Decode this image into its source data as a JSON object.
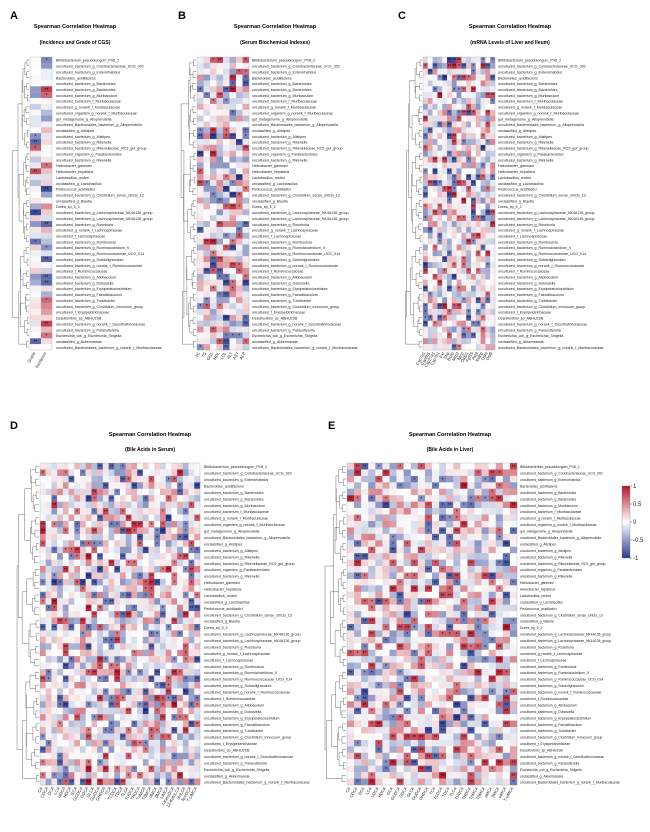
{
  "figure": {
    "panels": [
      {
        "id": "A",
        "letter": "A",
        "title": "Spearman Correlation Heatmap",
        "subtitle": "(Incidence and Grade of CGS)"
      },
      {
        "id": "B",
        "letter": "B",
        "title": "Spearman Correlation Heatmap",
        "subtitle": "(Serum Biochemical Indexes)"
      },
      {
        "id": "C",
        "letter": "C",
        "title": "Spearman Correlation Heatmap",
        "subtitle": "(mRNA Levels of Liver and Ileum)"
      },
      {
        "id": "D",
        "letter": "D",
        "title": "Spearman Correlation Heatmap",
        "subtitle": "(Bile Acids in Serum)"
      },
      {
        "id": "E",
        "letter": "E",
        "title": "Spearman Correlation Heatmap",
        "subtitle": "(Bile Acids in Liver)"
      }
    ],
    "colorbar": {
      "ticks": [
        "1",
        "0.5",
        "0",
        "-0.5",
        "-1"
      ],
      "high_color": "#b2182b",
      "mid_color": "#ffffff",
      "low_color": "#2b3b8f"
    }
  },
  "chart_data": [
    {
      "type": "heatmap",
      "panel": "A",
      "title": "Spearman Correlation Heatmap",
      "subtitle": "(Incidence and Grade of CGS)",
      "columns": [
        "Grade",
        "Incidence"
      ],
      "rows": [
        "Bifidobacterium_pseudolongum_PV8_2",
        "uncultured_bacterium_g_Coriobacteriaceae_UCG_002",
        "uncultured_bacterium_g_Enterorhabdus",
        "Bacteroides_acidifaciens",
        "uncultured_bacterium_g_Bacteroides",
        "uncultured_bacterium_g_Bacteroides",
        "uncultured_bacterium_g_Muribaculum",
        "uncultured_bacterium_f_Muribaculaceae",
        "uncultured_g_norank_f_Muribaculaceae",
        "uncultured_organism_g_norank_f_Muribaculaceae",
        "gut_metagenome_g_Alloprevotella",
        "uncultured_Bacteroidales_bacterium_g_Alloprevotella",
        "unclassified_g_Alistipes",
        "uncultured_bacterium_g_Alistipes",
        "uncultured_bacterium_g_Rikenella",
        "uncultured_bacterium_g_Rikenellaceae_RC9_gut_group",
        "uncultured_organism_g_Parabacteroides",
        "uncultured_bacterium_g_Rikenella",
        "Helicobacter_ganmani",
        "Helicobacter_hepaticus",
        "Lactobacillus_reuteri",
        "unclassified_g_Lactobacillus",
        "Pediococcus_acidilactici",
        "uncultured_bacterium_g_Clostridium_sensu_stricto_13",
        "unclassified_g_Blautia",
        "Dorea_sp_5_2",
        "uncultured_bacterium_g_Lachnospiraceae_NK4A136_group",
        "uncultured_bacterium_g_Lachnospiraceae_NK4A136_group",
        "uncultured_bacterium_g_Roseburia",
        "uncultured_g_norank_f_Lachnospiraceae",
        "uncultured_f_Lachnospiraceae",
        "uncultured_bacterium_g_Romboutsia",
        "uncultured_bacterium_g_Ruminiclostridium_9",
        "uncultured_bacterium_g_Ruminococcaceae_UCG_014",
        "uncultured_bacterium_g_Subdoligranulum",
        "uncultured_bacterium_g_norank_f_Ruminococcaceae",
        "uncultured_f_Ruminococcaceae",
        "uncultured_bacterium_g_Allobaculum",
        "uncultured_bacterium_g_Dubosiella",
        "uncultured_bacterium_g_Erysipelatoclostridium",
        "uncultured_bacterium_g_Faecalibaculum",
        "uncultured_bacterium_g_Turicibacter",
        "uncultured_bacterium_g_Clostridium_innocuum_group",
        "uncultured_f_Erysipelotrichaceae",
        "Desulfovibrio_sp_ABHU2SB",
        "uncultured_bacterium_g_norank_f_Desulfovibrionaceae",
        "uncultured_bacterium_g_Parasutterella",
        "Escherichia_coli_g_Escherichia_Shigella",
        "unclassified_g_Akkermansia",
        "uncultured_Bacteroidales_bacterium_g_norank_f_Muribaculaceae"
      ]
    },
    {
      "type": "heatmap",
      "panel": "B",
      "title": "Spearman Correlation Heatmap",
      "subtitle": "(Serum Biochemical Indexes)",
      "columns": [
        "TC",
        "TG",
        "GGL",
        "HDL",
        "LDL",
        "ALT",
        "AST",
        "ALP"
      ],
      "rows_same_as": "A"
    },
    {
      "type": "heatmap",
      "panel": "C",
      "title": "Spearman Correlation Heatmap",
      "subtitle": "(mRNA Levels of Liver and Ileum)",
      "columns": [
        "Cyp7a1",
        "Cyp8b1",
        "Cyp27a1",
        "Cyp7b1",
        "Fxr",
        "Shp",
        "Bsep",
        "Mrp2",
        "Ntcp",
        "Oatp1",
        "Fgf15",
        "Asbt",
        "Ibabp",
        "Ostα",
        "Ostβ"
      ],
      "rows_same_as": "A"
    },
    {
      "type": "heatmap",
      "panel": "D",
      "title": "Spearman Correlation Heatmap",
      "subtitle": "(Bile Acids in Serum)",
      "columns": [
        "CA",
        "CDCA",
        "DCA",
        "LCA",
        "UDCA",
        "HDCA",
        "GCA",
        "GCDCA",
        "GDCA",
        "GLCA",
        "GUDCA",
        "GHDCA",
        "TCA",
        "TCDCA",
        "TDCA",
        "TLCA",
        "TUDCA",
        "THDCA",
        "TαMCA",
        "TβMCA",
        "αMCA",
        "βMCA",
        "ωMCA",
        "7-KetoDCA",
        "12-KetoLCA",
        "isoLCA",
        "NorDCA",
        "T-ωMCA"
      ],
      "rows_same_as": "A"
    },
    {
      "type": "heatmap",
      "panel": "E",
      "title": "Spearman Correlation Heatmap",
      "subtitle": "(Bile Acids in Liver)",
      "columns": [
        "CA",
        "CDCA",
        "DCA",
        "LCA",
        "UDCA",
        "HDCA",
        "GCA",
        "GCDCA",
        "GDCA",
        "GLCA",
        "GUDCA",
        "GHDCA",
        "TCA",
        "TCDCA",
        "TDCA",
        "TLCA",
        "TUDCA",
        "THDCA",
        "TαMCA",
        "TβMCA",
        "αMCA",
        "βMCA",
        "ωMCA",
        "T-ωMCA"
      ],
      "rows_same_as": "A"
    }
  ]
}
